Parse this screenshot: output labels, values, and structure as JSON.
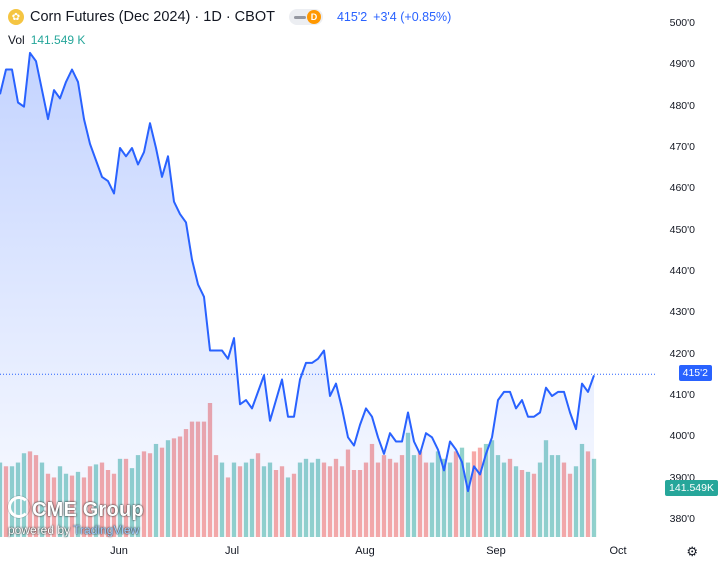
{
  "header": {
    "symbol_icon": "corn-icon",
    "title": "Corn Futures (Dec 2024) · 1D · CBOT",
    "badge_letter": "D",
    "price": "415'2",
    "change": "+3'4 (+0.85%)"
  },
  "volume": {
    "label": "Vol",
    "value": "141.549 K"
  },
  "colors": {
    "line": "#2962ff",
    "up": "#26a69a",
    "down": "#ef5350",
    "accent": "#2962ff"
  },
  "branding": {
    "logo": "CME Group",
    "powered_prefix": "powered by ",
    "powered_brand": "TradingView"
  },
  "badges": {
    "last_price": "415'2",
    "last_volume": "141.549K"
  },
  "chart_data": {
    "type": "line",
    "title": "Corn Futures (Dec 2024) · 1D · CBOT",
    "xlabel": "",
    "ylabel": "",
    "ylim": [
      378,
      502
    ],
    "x_tick_labels": [
      "Jun",
      "Jul",
      "Aug",
      "Sep",
      "Oct"
    ],
    "y_tick_labels": [
      "500'0",
      "490'0",
      "480'0",
      "470'0",
      "460'0",
      "450'0",
      "440'0",
      "430'0",
      "420'0",
      "410'0",
      "400'0",
      "390'0",
      "380'0"
    ],
    "y_tick_values": [
      500,
      490,
      480,
      470,
      460,
      450,
      440,
      430,
      420,
      410,
      400,
      390,
      380
    ],
    "last_value": 415.25,
    "series": [
      {
        "values": [
          483,
          489,
          489,
          481,
          480,
          493,
          491,
          484,
          477,
          484,
          482,
          486,
          489,
          486,
          477,
          471,
          467,
          463,
          462,
          459,
          470,
          468,
          470,
          466,
          469,
          476,
          470,
          463,
          468,
          457,
          454,
          452,
          443,
          437,
          434,
          421,
          421,
          421,
          419,
          424,
          408,
          409,
          407,
          411,
          415,
          404,
          409,
          414,
          405,
          405,
          414,
          418,
          418,
          419,
          421,
          410,
          413,
          407,
          400,
          398,
          403,
          407,
          405,
          400,
          396,
          401,
          399,
          399,
          406,
          399,
          396,
          401,
          400,
          397,
          392,
          399,
          397,
          394,
          387,
          393,
          391,
          396,
          400,
          409,
          411,
          411,
          407,
          409,
          405,
          405,
          406,
          412,
          410,
          411,
          411,
          406,
          402,
          413,
          411,
          415
        ]
      }
    ],
    "volume_series": {
      "values": [
        40,
        38,
        38,
        40,
        45,
        46,
        44,
        40,
        34,
        32,
        38,
        34,
        33,
        35,
        32,
        38,
        39,
        40,
        36,
        34,
        42,
        42,
        37,
        44,
        46,
        45,
        50,
        48,
        52,
        53,
        54,
        58,
        62,
        62,
        62,
        72,
        44,
        40,
        32,
        40,
        38,
        40,
        42,
        45,
        38,
        40,
        36,
        38,
        32,
        34,
        40,
        42,
        40,
        42,
        40,
        38,
        42,
        38,
        47,
        36,
        36,
        40,
        50,
        40,
        44,
        42,
        40,
        44,
        56,
        44,
        46,
        40,
        40,
        46,
        42,
        40,
        46,
        48,
        40,
        46,
        48,
        50,
        52,
        44,
        40,
        42,
        38,
        36,
        35,
        34,
        40,
        52,
        44,
        44,
        40,
        34,
        38,
        50,
        46,
        42
      ],
      "directions": [
        "u",
        "d",
        "u",
        "u",
        "u",
        "d",
        "d",
        "u",
        "d",
        "d",
        "u",
        "u",
        "d",
        "u",
        "d",
        "d",
        "u",
        "d",
        "d",
        "d",
        "u",
        "d",
        "u",
        "u",
        "d",
        "d",
        "u",
        "d",
        "u",
        "d",
        "d",
        "d",
        "d",
        "d",
        "d",
        "d",
        "d",
        "u",
        "d",
        "u",
        "d",
        "u",
        "u",
        "d",
        "u",
        "u",
        "d",
        "d",
        "u",
        "d",
        "u",
        "u",
        "u",
        "u",
        "d",
        "d",
        "d",
        "d",
        "d",
        "d",
        "d",
        "d",
        "d",
        "d",
        "d",
        "d",
        "d",
        "d",
        "u",
        "u",
        "d",
        "d",
        "u",
        "u",
        "u",
        "u",
        "d",
        "u",
        "u",
        "d",
        "d",
        "u",
        "u",
        "u",
        "u",
        "d",
        "u",
        "d",
        "u",
        "d",
        "u",
        "u",
        "u",
        "u",
        "d",
        "d",
        "u",
        "u",
        "d",
        "u"
      ]
    }
  }
}
